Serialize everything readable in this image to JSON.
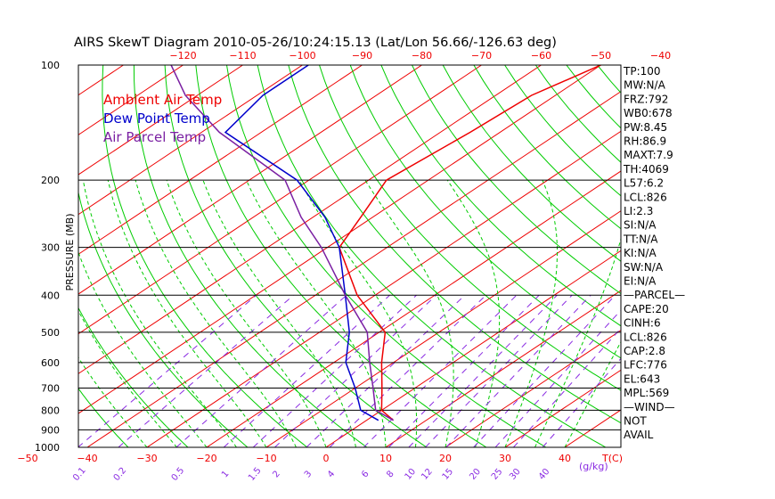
{
  "title": "AIRS SkewT Diagram 2010-05-26/10:24:15.13 (Lat/Lon 56.66/-126.63 deg)",
  "ylabel": "PRESSURE (MB)",
  "legend": {
    "ambient": "Ambient Air Temp",
    "dew": "Dew Point Temp",
    "parcel": "Air Parcel Temp"
  },
  "colors": {
    "ambient": "#ee0000",
    "dew": "#0000cc",
    "parcel": "#7a1fa2",
    "isotherm": "#ee0000",
    "dry_adiabat": "#00cc00",
    "moist_adiabat": "#00cc00",
    "mixing_ratio": "#8a2be2",
    "isobar": "#000000",
    "top_axis": "#ee0000",
    "bottom_axis": "#ee0000",
    "mixing_axis": "#8a2be2"
  },
  "chart_data": {
    "type": "line",
    "title": "AIRS SkewT Diagram 2010-05-26/10:24:15.13 (Lat/Lon 56.66/-126.63 deg)",
    "ylabel": "PRESSURE (MB)",
    "y_scale": "log",
    "pressure_ticks": [
      100,
      200,
      300,
      400,
      500,
      600,
      700,
      800,
      900,
      1000
    ],
    "ylim": [
      1000,
      100
    ],
    "top_temp_ticks": [
      -120,
      -110,
      -100,
      -90,
      -80,
      -70,
      -60,
      -50,
      -40
    ],
    "bottom_temp_ticks": [
      -50,
      -40,
      -30,
      -20,
      -10,
      0,
      10,
      20,
      30,
      40
    ],
    "bottom_temp_unit": "T(C)",
    "mixing_ratio_ticks": [
      "0.1",
      "0.2",
      "0.5",
      "1",
      "1.5",
      "2",
      "3",
      "4",
      "6",
      "8",
      "10",
      "12",
      "15",
      "20",
      "25",
      "30",
      "40"
    ],
    "mixing_ratio_unit": "(g/kg)",
    "series": [
      {
        "name": "Ambient Air Temp",
        "key": "ambient",
        "points": [
          [
            850,
            4.5
          ],
          [
            800,
            0
          ],
          [
            700,
            -5.5
          ],
          [
            600,
            -12
          ],
          [
            500,
            -19
          ],
          [
            400,
            -33
          ],
          [
            300,
            -48
          ],
          [
            250,
            -52
          ],
          [
            200,
            -57
          ],
          [
            150,
            -55
          ],
          [
            120,
            -54
          ],
          [
            100,
            -50
          ]
        ]
      },
      {
        "name": "Dew Point Temp",
        "key": "dew",
        "points": [
          [
            850,
            2
          ],
          [
            800,
            -3.5
          ],
          [
            700,
            -10
          ],
          [
            600,
            -18
          ],
          [
            500,
            -25
          ],
          [
            400,
            -35
          ],
          [
            300,
            -48
          ],
          [
            250,
            -58
          ],
          [
            200,
            -72
          ],
          [
            150,
            -96
          ],
          [
            120,
            -99
          ],
          [
            100,
            -99
          ]
        ]
      },
      {
        "name": "Air Parcel Temp",
        "key": "parcel",
        "points": [
          [
            850,
            4.5
          ],
          [
            800,
            -1
          ],
          [
            700,
            -7
          ],
          [
            600,
            -14
          ],
          [
            500,
            -22
          ],
          [
            400,
            -35
          ],
          [
            300,
            -51
          ],
          [
            250,
            -62
          ],
          [
            200,
            -74
          ],
          [
            150,
            -97
          ],
          [
            120,
            -112
          ],
          [
            100,
            -122
          ]
        ]
      }
    ],
    "stats": [
      "TP:100",
      "MW:N/A",
      "FRZ:792",
      "WB0:678",
      "PW:8.45",
      "RH:86.9",
      "MAXT:7.9",
      "TH:4069",
      "L57:6.2",
      "LCL:826",
      "LI:2.3",
      "SI:N/A",
      "TT:N/A",
      "KI:N/A",
      "SW:N/A",
      "EI:N/A",
      "—PARCEL—",
      "CAPE:20",
      "CINH:6",
      "LCL:826",
      "CAP:2.8",
      "LFC:776",
      "EL:643",
      "MPL:569",
      "—WIND—",
      "NOT",
      "AVAIL"
    ]
  }
}
